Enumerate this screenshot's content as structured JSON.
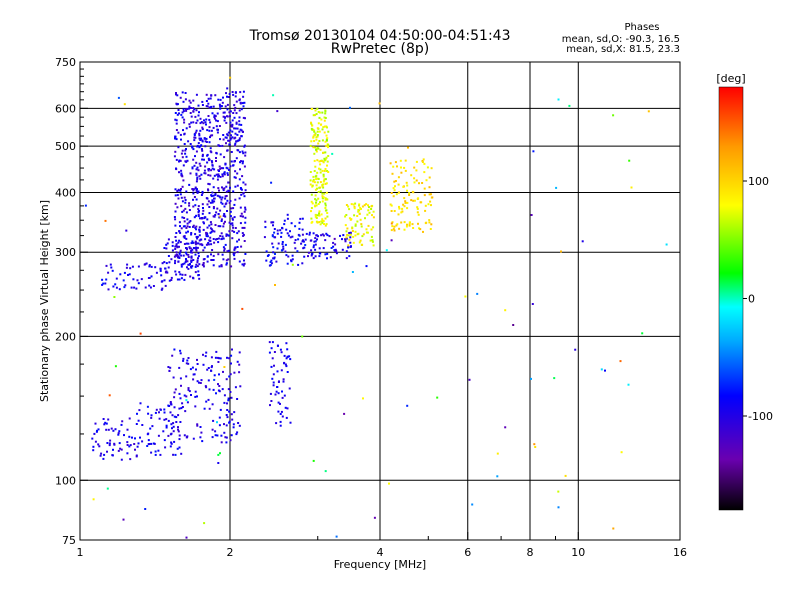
{
  "chart_data": {
    "type": "scatter",
    "title": "Tromsø 20130104 04:50:00-04:51:43",
    "subtitle": "RwPretec (8p)",
    "xlabel": "Frequency [MHz]",
    "ylabel": "Stationary phase Virtual Height [km]",
    "x_scale": "log",
    "y_scale": "log",
    "xlim": [
      1,
      16
    ],
    "ylim": [
      75,
      750
    ],
    "x_ticks": [
      1,
      2,
      4,
      6,
      8,
      10,
      16
    ],
    "x_tick_labels": [
      "1",
      "2",
      "4",
      "6",
      "8",
      "10",
      "16"
    ],
    "x_minor_ticks": [
      3,
      5,
      7,
      9
    ],
    "y_ticks": [
      75,
      100,
      200,
      300,
      400,
      500,
      600,
      750
    ],
    "y_tick_labels": [
      "75",
      "100",
      "200",
      "300",
      "400",
      "500",
      "600",
      "750"
    ],
    "y_minor_ticks": [
      125,
      150,
      175,
      225,
      250,
      275,
      325,
      350,
      375,
      425,
      450,
      475,
      525,
      550,
      575,
      625,
      650,
      675,
      700,
      725
    ],
    "grid": true,
    "phase_stats": {
      "header": "Phases",
      "line_o": "mean, sd,O: -90.3, 16.5",
      "line_x": "mean, sd,X:  81.5, 23.3"
    },
    "colorbar": {
      "label": "[deg]",
      "range": [
        -180,
        180
      ],
      "tick_values": [
        100,
        0,
        -100
      ],
      "tick_labels": [
        "100",
        "0",
        "-100"
      ],
      "colormap": [
        "#000000",
        "#6a00b0",
        "#0000ff",
        "#00aaff",
        "#00ffff",
        "#00ff00",
        "#ffff00",
        "#ff9900",
        "#ff0000"
      ]
    },
    "clusters": [
      {
        "f": [
          1.05,
          1.3
        ],
        "h": [
          110,
          135
        ],
        "phase": [
          -115,
          -80
        ],
        "count": 60
      },
      {
        "f": [
          1.3,
          1.6
        ],
        "h": [
          112,
          145
        ],
        "phase": [
          -110,
          -75
        ],
        "count": 70
      },
      {
        "f": [
          1.5,
          2.1
        ],
        "h": [
          120,
          190
        ],
        "phase": [
          -115,
          -80
        ],
        "count": 170
      },
      {
        "f": [
          2.4,
          2.65
        ],
        "h": [
          130,
          195
        ],
        "phase": [
          -110,
          -80
        ],
        "count": 60
      },
      {
        "f": [
          1.1,
          1.5
        ],
        "h": [
          250,
          285
        ],
        "phase": [
          -110,
          -75
        ],
        "count": 60
      },
      {
        "f": [
          1.45,
          1.75
        ],
        "h": [
          260,
          320
        ],
        "phase": [
          -115,
          -80
        ],
        "count": 90
      },
      {
        "f": [
          1.55,
          2.15
        ],
        "h": [
          280,
          650
        ],
        "phase": [
          -120,
          -80
        ],
        "count": 800
      },
      {
        "f": [
          2.35,
          2.8
        ],
        "h": [
          280,
          360
        ],
        "phase": [
          -110,
          -70
        ],
        "count": 80
      },
      {
        "f": [
          2.75,
          3.5
        ],
        "h": [
          290,
          330
        ],
        "phase": [
          -115,
          -70
        ],
        "count": 80
      },
      {
        "f": [
          2.9,
          3.15
        ],
        "h": [
          340,
          600
        ],
        "phase": [
          55,
          95
        ],
        "count": 200
      },
      {
        "f": [
          3.4,
          3.9
        ],
        "h": [
          310,
          380
        ],
        "phase": [
          60,
          100
        ],
        "count": 80
      },
      {
        "f": [
          4.2,
          5.1
        ],
        "h": [
          330,
          470
        ],
        "phase": [
          75,
          115
        ],
        "count": 120
      },
      {
        "f": [
          1.0,
          16.0
        ],
        "h": [
          75,
          700
        ],
        "phase": [
          -150,
          160
        ],
        "count": 90
      }
    ]
  }
}
